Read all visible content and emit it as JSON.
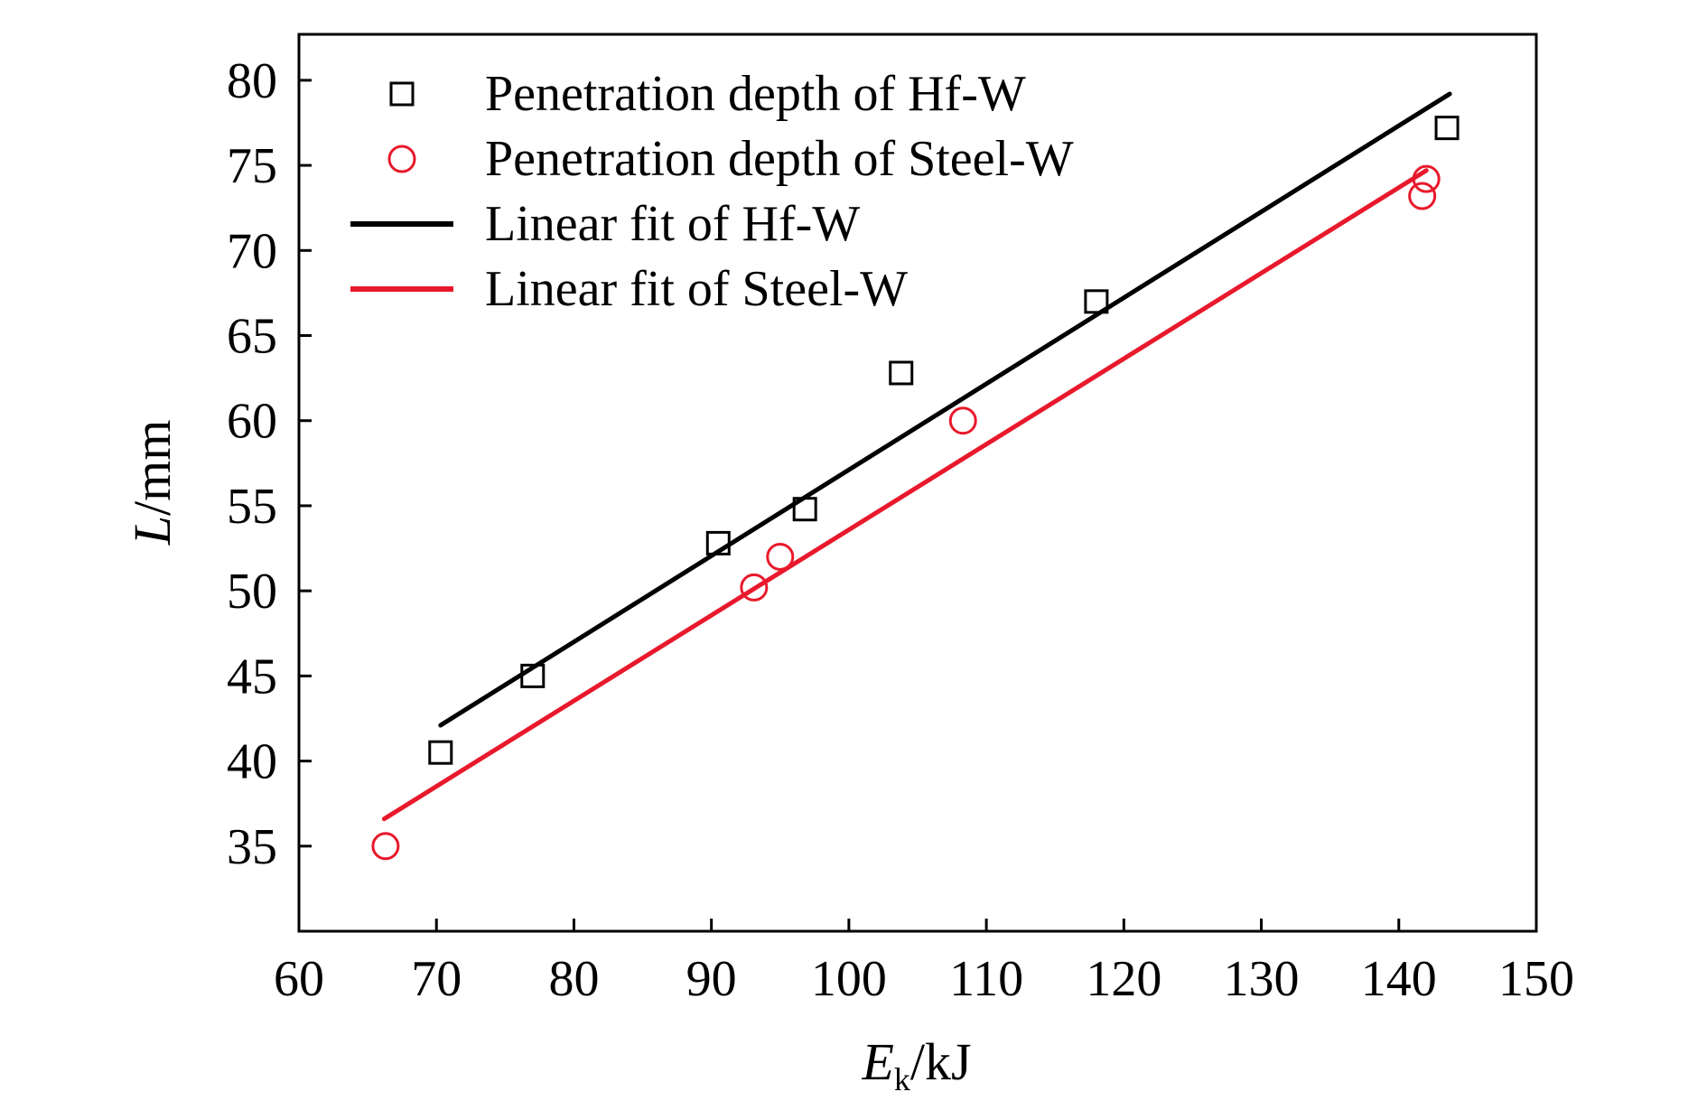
{
  "chart_data": {
    "type": "scatter",
    "xlabel": {
      "main": "E",
      "sub": "k",
      "unit": "/kJ"
    },
    "ylabel": {
      "main": "L",
      "unit": "/mm"
    },
    "xlim": [
      60,
      150
    ],
    "ylim": [
      30,
      82.7
    ],
    "xticks": [
      60,
      70,
      80,
      90,
      100,
      110,
      120,
      130,
      140,
      150
    ],
    "yticks": [
      35,
      40,
      45,
      50,
      55,
      60,
      65,
      70,
      75,
      80
    ],
    "grid": false,
    "legend_position": "top-left",
    "series": [
      {
        "name": "Penetration depth of Hf-W",
        "kind": "points",
        "marker": "square",
        "color": "#000000",
        "points": [
          [
            70.3,
            40.5
          ],
          [
            77.0,
            45.0
          ],
          [
            90.5,
            52.8
          ],
          [
            96.8,
            54.8
          ],
          [
            103.8,
            62.8
          ],
          [
            118.0,
            67.0
          ],
          [
            143.5,
            77.2
          ]
        ]
      },
      {
        "name": "Penetration depth of Steel-W",
        "kind": "points",
        "marker": "circle",
        "color": "#e8192c",
        "points": [
          [
            66.3,
            35.0
          ],
          [
            93.1,
            50.2
          ],
          [
            95.0,
            52.0
          ],
          [
            108.3,
            60.0
          ],
          [
            141.7,
            73.2
          ],
          [
            142.0,
            74.2
          ]
        ]
      },
      {
        "name": "Linear fit of Hf-W",
        "kind": "line",
        "color": "#000000",
        "points": [
          [
            70.3,
            42.1
          ],
          [
            143.7,
            79.2
          ]
        ]
      },
      {
        "name": "Linear fit of Steel-W",
        "kind": "line",
        "color": "#e8192c",
        "points": [
          [
            66.2,
            36.6
          ],
          [
            142.0,
            74.7
          ]
        ]
      }
    ]
  }
}
